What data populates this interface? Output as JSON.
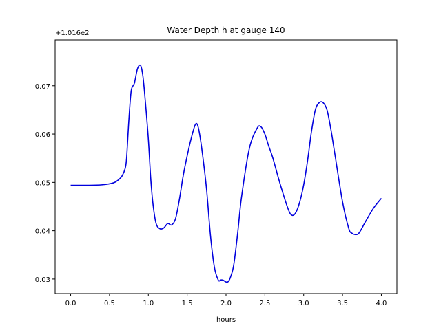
{
  "chart_data": {
    "type": "line",
    "title": "Water Depth h at gauge 140",
    "xlabel": "hours",
    "ylabel": "",
    "y_offset_label": "+1.016e2",
    "xlim": [
      -0.2,
      4.2
    ],
    "ylim": [
      0.027,
      0.0795
    ],
    "xticks": [
      0.0,
      0.5,
      1.0,
      1.5,
      2.0,
      2.5,
      3.0,
      3.5,
      4.0
    ],
    "xtick_labels": [
      "0.0",
      "0.5",
      "1.0",
      "1.5",
      "2.0",
      "2.5",
      "3.0",
      "3.5",
      "4.0"
    ],
    "yticks": [
      0.03,
      0.04,
      0.05,
      0.06,
      0.07
    ],
    "ytick_labels": [
      "0.03",
      "0.04",
      "0.05",
      "0.06",
      "0.07"
    ],
    "grid": false,
    "series": [
      {
        "color": "#0000dd",
        "x": [
          0.0,
          0.2,
          0.4,
          0.55,
          0.62,
          0.66,
          0.7,
          0.72,
          0.75,
          0.78,
          0.82,
          0.86,
          0.9,
          0.93,
          0.96,
          1.0,
          1.03,
          1.06,
          1.1,
          1.15,
          1.2,
          1.25,
          1.3,
          1.35,
          1.4,
          1.45,
          1.5,
          1.55,
          1.6,
          1.63,
          1.66,
          1.7,
          1.75,
          1.8,
          1.85,
          1.9,
          1.93,
          1.96,
          2.0,
          2.03,
          2.06,
          2.1,
          2.15,
          2.2,
          2.3,
          2.4,
          2.45,
          2.5,
          2.55,
          2.6,
          2.7,
          2.8,
          2.85,
          2.9,
          2.95,
          3.0,
          3.05,
          3.1,
          3.15,
          3.2,
          3.25,
          3.3,
          3.35,
          3.4,
          3.5,
          3.58,
          3.62,
          3.68,
          3.72,
          3.8,
          3.9,
          4.0
        ],
        "values": [
          0.0494,
          0.0494,
          0.0495,
          0.0499,
          0.0506,
          0.0513,
          0.0528,
          0.055,
          0.063,
          0.069,
          0.0705,
          0.0735,
          0.0742,
          0.072,
          0.067,
          0.059,
          0.051,
          0.0455,
          0.0415,
          0.0404,
          0.0406,
          0.0415,
          0.0412,
          0.0425,
          0.0465,
          0.0515,
          0.0555,
          0.059,
          0.0618,
          0.062,
          0.06,
          0.0555,
          0.0485,
          0.039,
          0.0325,
          0.0298,
          0.0298,
          0.0298,
          0.0294,
          0.0295,
          0.0305,
          0.033,
          0.0395,
          0.047,
          0.057,
          0.0612,
          0.0615,
          0.06,
          0.0575,
          0.0552,
          0.0495,
          0.0445,
          0.0432,
          0.0438,
          0.046,
          0.0495,
          0.0545,
          0.0605,
          0.065,
          0.0665,
          0.0665,
          0.065,
          0.061,
          0.056,
          0.046,
          0.0405,
          0.0395,
          0.0392,
          0.0397,
          0.042,
          0.0447,
          0.0467
        ]
      }
    ]
  }
}
